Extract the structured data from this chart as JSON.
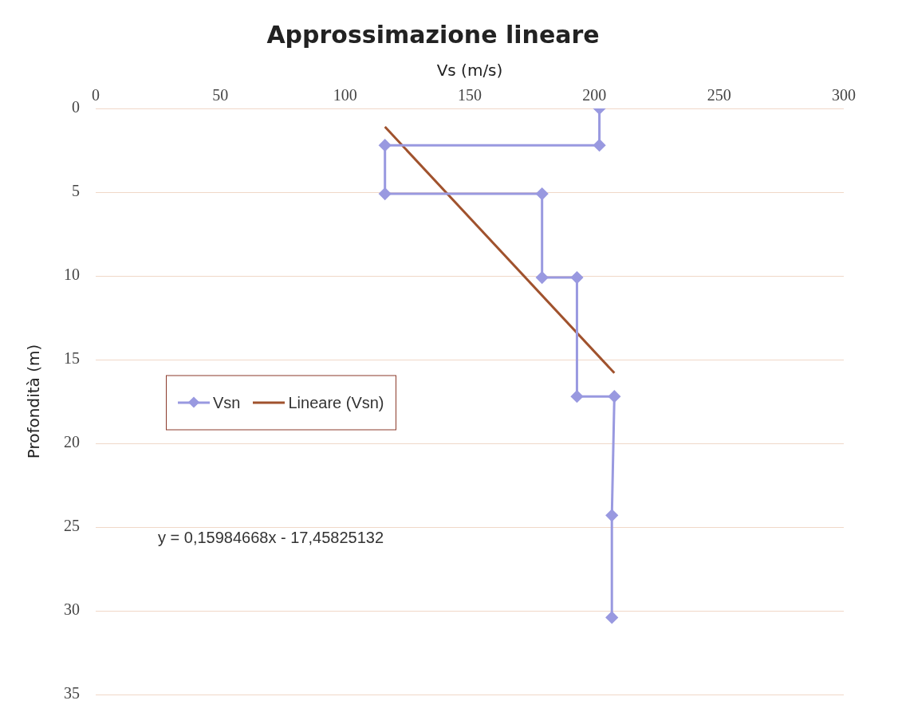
{
  "chart_data": {
    "type": "line",
    "title": "Approssimazione lineare",
    "xlabel": "Vs (m/s)",
    "ylabel": "Profondità (m)",
    "xlim": [
      0,
      300
    ],
    "xticks": [
      0,
      50,
      100,
      150,
      200,
      250,
      300
    ],
    "ylim": [
      35,
      0
    ],
    "yticks": [
      0,
      5,
      10,
      15,
      20,
      25,
      30,
      35
    ],
    "grid": "y",
    "legend": "left",
    "line_style": "solid",
    "series": [
      {
        "name": "Vsn",
        "color": "#9999e0",
        "marker": "diamond",
        "x": [
          202,
          202,
          116,
          116,
          179,
          179,
          193,
          193,
          208,
          207,
          207
        ],
        "values": [
          0,
          2.2,
          2.2,
          5.1,
          5.1,
          10.1,
          10.1,
          17.2,
          17.2,
          24.3,
          30.4
        ]
      },
      {
        "name": "Lineare (Vsn)",
        "color": "#a0522d",
        "marker": "none",
        "x": [
          116,
          208
        ],
        "values": [
          1.1,
          15.8
        ]
      }
    ],
    "annotations": [
      "y = 0,15984668x - 17,45825132"
    ]
  }
}
